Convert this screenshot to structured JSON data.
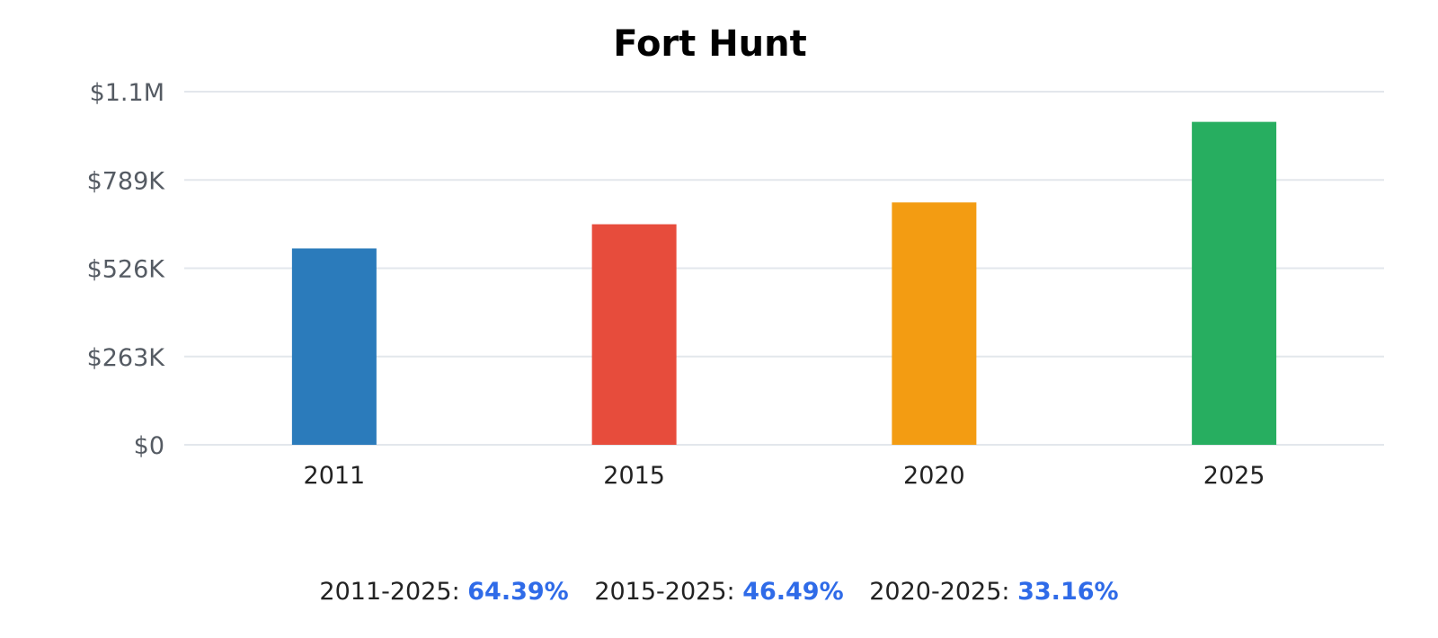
{
  "chart_data": {
    "type": "bar",
    "title": "Fort Hunt",
    "categories": [
      "2011",
      "2015",
      "2020",
      "2025"
    ],
    "values": [
      585000,
      657000,
      722000,
      962000
    ],
    "colors": [
      "#2b7bbb",
      "#e74c3c",
      "#f39c12",
      "#27ae60"
    ],
    "xlabel": "",
    "ylabel": "",
    "ylim": [
      0,
      1052000
    ],
    "yticks": [
      {
        "value": 0,
        "label": "$0"
      },
      {
        "value": 263000,
        "label": "$263K"
      },
      {
        "value": 526000,
        "label": "$526K"
      },
      {
        "value": 789000,
        "label": "$789K"
      },
      {
        "value": 1052000,
        "label": "$1.1M"
      }
    ],
    "grid": true,
    "legend": "none"
  },
  "growth": [
    {
      "range": "2011-2025:",
      "value": "64.39%"
    },
    {
      "range": "2015-2025:",
      "value": "46.49%"
    },
    {
      "range": "2020-2025:",
      "value": "33.16%"
    }
  ]
}
